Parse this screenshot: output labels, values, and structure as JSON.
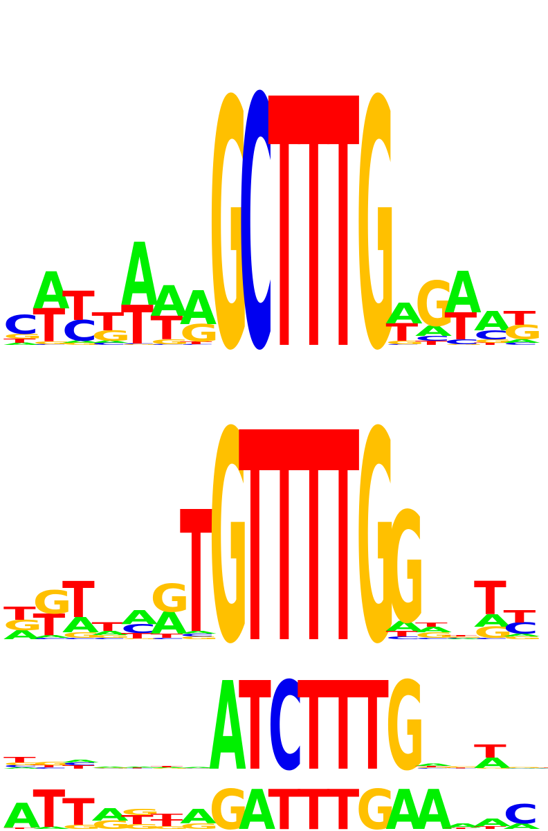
{
  "colors": {
    "A": "#00f000",
    "C": "#0000f0",
    "G": "#ffc000",
    "T": "#ff0000"
  },
  "logos": [
    {
      "name": "motif-logo-1",
      "columns": [
        [
          [
            "A",
            0.03
          ],
          [
            "T",
            0.06
          ],
          [
            "G",
            0.07
          ],
          [
            "C",
            0.27
          ]
        ],
        [
          [
            "C",
            0.01
          ],
          [
            "G",
            0.04
          ],
          [
            "T",
            0.48
          ],
          [
            "A",
            0.53
          ]
        ],
        [
          [
            "G",
            0.03
          ],
          [
            "A",
            0.03
          ],
          [
            "C",
            0.3
          ],
          [
            "T",
            0.42
          ]
        ],
        [
          [
            "C",
            0.03
          ],
          [
            "A",
            0.03
          ],
          [
            "G",
            0.15
          ],
          [
            "T",
            0.26
          ]
        ],
        [
          [
            "G",
            0.01
          ],
          [
            "C",
            0.01
          ],
          [
            "T",
            0.56
          ],
          [
            "A",
            0.91
          ]
        ],
        [
          [
            "C",
            0.01
          ],
          [
            "G",
            0.07
          ],
          [
            "T",
            0.34
          ],
          [
            "A",
            0.44
          ]
        ],
        [
          [
            "C",
            0.01
          ],
          [
            "T",
            0.04
          ],
          [
            "G",
            0.25
          ],
          [
            "A",
            0.49
          ]
        ],
        [
          [
            "G",
            3.58
          ]
        ],
        [
          [
            "C",
            3.62
          ]
        ],
        [
          [
            "T",
            3.6
          ]
        ],
        [
          [
            "T",
            3.6
          ]
        ],
        [
          [
            "T",
            3.6
          ]
        ],
        [
          [
            "G",
            3.58
          ]
        ],
        [
          [
            "C",
            0.01
          ],
          [
            "G",
            0.05
          ],
          [
            "T",
            0.25
          ],
          [
            "A",
            0.3
          ]
        ],
        [
          [
            "T",
            0.06
          ],
          [
            "C",
            0.07
          ],
          [
            "A",
            0.15
          ],
          [
            "G",
            0.65
          ]
        ],
        [
          [
            "G",
            0.01
          ],
          [
            "C",
            0.07
          ],
          [
            "T",
            0.39
          ],
          [
            "A",
            0.6
          ]
        ],
        [
          [
            "T",
            0.03
          ],
          [
            "G",
            0.05
          ],
          [
            "C",
            0.13
          ],
          [
            "A",
            0.28
          ]
        ],
        [
          [
            "C",
            0.03
          ],
          [
            "A",
            0.05
          ],
          [
            "G",
            0.21
          ],
          [
            "T",
            0.2
          ]
        ]
      ]
    },
    {
      "name": "motif-logo-2",
      "columns": [
        [
          [
            "A",
            0.13
          ],
          [
            "G",
            0.15
          ],
          [
            "T",
            0.19
          ]
        ],
        [
          [
            "C",
            0.02
          ],
          [
            "A",
            0.04
          ],
          [
            "T",
            0.31
          ],
          [
            "G",
            0.34
          ]
        ],
        [
          [
            "C",
            0.02
          ],
          [
            "G",
            0.08
          ],
          [
            "A",
            0.22
          ],
          [
            "T",
            0.52
          ]
        ],
        [
          [
            "C",
            0.02
          ],
          [
            "G",
            0.04
          ],
          [
            "A",
            0.06
          ],
          [
            "T",
            0.12
          ]
        ],
        [
          [
            "G",
            0.01
          ],
          [
            "T",
            0.08
          ],
          [
            "C",
            0.13
          ],
          [
            "A",
            0.2
          ]
        ],
        [
          [
            "C",
            0.02
          ],
          [
            "T",
            0.06
          ],
          [
            "A",
            0.32
          ],
          [
            "G",
            0.4
          ]
        ],
        [
          [
            "G",
            0.04
          ],
          [
            "C",
            0.04
          ],
          [
            "A",
            0.04
          ],
          [
            "T",
            1.76
          ]
        ],
        [
          [
            "G",
            3.05
          ]
        ],
        [
          [
            "T",
            3.03
          ]
        ],
        [
          [
            "T",
            3.03
          ]
        ],
        [
          [
            "T",
            3.03
          ]
        ],
        [
          [
            "T",
            3.03
          ]
        ],
        [
          [
            "G",
            3.05
          ]
        ],
        [
          [
            "C",
            0.04
          ],
          [
            "T",
            0.08
          ],
          [
            "A",
            0.14
          ],
          [
            "G",
            1.6
          ]
        ],
        [
          [
            "C",
            0.02
          ],
          [
            "G",
            0.08
          ],
          [
            "A",
            0.08
          ],
          [
            "T",
            0.06
          ]
        ],
        [
          [
            "A",
            0.01
          ],
          [
            "C",
            0.01
          ],
          [
            "G",
            0.02
          ],
          [
            "T",
            0.02
          ]
        ],
        [
          [
            "C",
            0.02
          ],
          [
            "G",
            0.16
          ],
          [
            "A",
            0.18
          ],
          [
            "T",
            0.48
          ]
        ],
        [
          [
            "G",
            0.04
          ],
          [
            "A",
            0.04
          ],
          [
            "C",
            0.16
          ],
          [
            "T",
            0.18
          ]
        ]
      ]
    },
    {
      "name": "motif-logo-3",
      "columns": [
        [
          [
            "A",
            0.02
          ],
          [
            "C",
            0.03
          ],
          [
            "G",
            0.04
          ],
          [
            "T",
            0.08
          ]
        ],
        [
          [
            "C",
            0.02
          ],
          [
            "T",
            0.03
          ],
          [
            "G",
            0.05
          ]
        ],
        [
          [
            "T",
            0.05
          ],
          [
            "C",
            0.04
          ],
          [
            "A",
            0.04
          ]
        ],
        [
          [
            "C",
            0.005
          ],
          [
            "G",
            0.01
          ],
          [
            "A",
            0.01
          ]
        ],
        [
          [
            "C",
            0.005
          ],
          [
            "T",
            0.01
          ],
          [
            "A",
            0.01
          ]
        ],
        [
          [
            "G",
            0.01
          ],
          [
            "A",
            0.01
          ],
          [
            "T",
            0.02
          ]
        ],
        [
          [
            "C",
            0.005
          ],
          [
            "G",
            0.005
          ],
          [
            "A",
            0.01
          ]
        ],
        [
          [
            "A",
            1.28
          ]
        ],
        [
          [
            "T",
            1.28
          ]
        ],
        [
          [
            "C",
            1.28
          ]
        ],
        [
          [
            "T",
            1.28
          ]
        ],
        [
          [
            "T",
            1.28
          ]
        ],
        [
          [
            "T",
            1.28
          ]
        ],
        [
          [
            "G",
            1.28
          ]
        ],
        [
          [
            "C",
            0.01
          ],
          [
            "G",
            0.01
          ],
          [
            "T",
            0.02
          ],
          [
            "A",
            0.03
          ]
        ],
        [
          [
            "C",
            0.005
          ],
          [
            "T",
            0.01
          ],
          [
            "G",
            0.02
          ]
        ],
        [
          [
            "G",
            0.01
          ],
          [
            "A",
            0.15
          ],
          [
            "T",
            0.19
          ]
        ],
        [
          [
            "C",
            0.005
          ],
          [
            "A",
            0.005
          ],
          [
            "G",
            0.01
          ]
        ],
        [
          [
            "A",
            0.005
          ],
          [
            "C",
            0.005
          ],
          [
            "G",
            0.005
          ],
          [
            "T",
            0.005
          ]
        ]
      ]
    },
    {
      "name": "motif-logo-4",
      "columns": [
        [
          [
            "T",
            0.02
          ],
          [
            "A",
            0.36
          ]
        ],
        [
          [
            "A",
            0.03
          ],
          [
            "T",
            0.54
          ]
        ],
        [
          [
            "G",
            0.06
          ],
          [
            "T",
            0.38
          ]
        ],
        [
          [
            "G",
            0.12
          ],
          [
            "A",
            0.18
          ]
        ],
        [
          [
            "G",
            0.07
          ],
          [
            "T",
            0.13
          ],
          [
            "G",
            0.09
          ]
        ],
        [
          [
            "G",
            0.04
          ],
          [
            "T",
            0.1
          ],
          [
            "T",
            0.08
          ]
        ],
        [
          [
            "G",
            0.08
          ],
          [
            "A",
            0.21
          ]
        ],
        [
          [
            "G",
            0.58
          ]
        ],
        [
          [
            "A",
            0.58
          ]
        ],
        [
          [
            "T",
            0.58
          ]
        ],
        [
          [
            "T",
            0.58
          ]
        ],
        [
          [
            "T",
            0.58
          ]
        ],
        [
          [
            "G",
            0.58
          ]
        ],
        [
          [
            "A",
            0.58
          ]
        ],
        [
          [
            "A",
            0.58
          ]
        ],
        [
          [
            "T",
            0.02
          ],
          [
            "A",
            0.06
          ]
        ],
        [
          [
            "T",
            0.04
          ],
          [
            "A",
            0.11
          ]
        ],
        [
          [
            "A",
            0.08
          ],
          [
            "C",
            0.28
          ]
        ]
      ]
    }
  ]
}
